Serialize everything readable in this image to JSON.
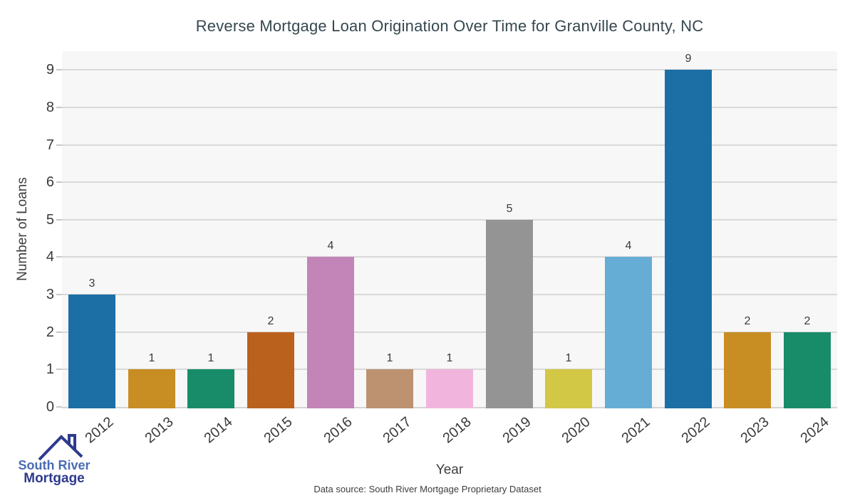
{
  "source_note": "Data source: South River Mortgage Proprietary Dataset",
  "logo": {
    "line1": "South River",
    "line2": "Mortgage",
    "text_color_primary": "#4a6cb4",
    "text_color_secondary": "#2e3a8c"
  },
  "chart_data": {
    "type": "bar",
    "title": "Reverse Mortgage Loan Origination Over Time for Granville County, NC",
    "xlabel": "Year",
    "ylabel": "Number of Loans",
    "categories": [
      "2012",
      "2013",
      "2014",
      "2015",
      "2016",
      "2017",
      "2018",
      "2019",
      "2020",
      "2021",
      "2022",
      "2023",
      "2024"
    ],
    "values": [
      3,
      1,
      1,
      2,
      4,
      1,
      1,
      5,
      1,
      4,
      9,
      2,
      2
    ],
    "bar_colors": [
      "#1b6fa4",
      "#c88d23",
      "#188c68",
      "#bb611e",
      "#c384b8",
      "#bc9271",
      "#f1b5dd",
      "#949494",
      "#d2c845",
      "#66add6",
      "#1b6fa4",
      "#c88d23",
      "#188c68"
    ],
    "bar_labels": [
      "3",
      "1",
      "1",
      "2",
      "4",
      "1",
      "1",
      "5",
      "1",
      "4",
      "9",
      "2",
      "2"
    ],
    "yticks": [
      0,
      1,
      2,
      3,
      4,
      5,
      6,
      7,
      8,
      9
    ],
    "ylim": [
      0,
      9.5
    ],
    "grid": true,
    "legend": false,
    "plot_background": "#f7f7f7",
    "grid_color": "#d9d9d9",
    "title_color": "#36474f",
    "tick_label_color": "#3a3a3a",
    "x_tick_rotation_deg": 40
  }
}
